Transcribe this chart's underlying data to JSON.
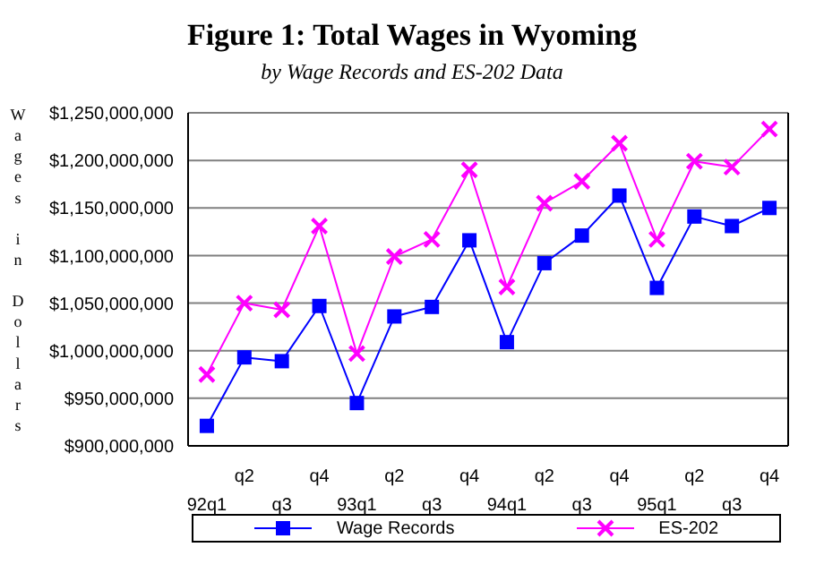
{
  "chart_data": {
    "type": "line",
    "title": "Figure 1:  Total Wages in Wyoming",
    "subtitle": "by Wage Records and ES-202 Data",
    "ylabel": "Wages in Dollars",
    "categories": [
      "92q1",
      "q2",
      "q3",
      "q4",
      "93q1",
      "q2",
      "q3",
      "q4",
      "94q1",
      "q2",
      "q3",
      "q4",
      "95q1",
      "q2",
      "q3",
      "q4"
    ],
    "series": [
      {
        "name": "Wage Records",
        "color": "#0000ff",
        "marker": "square",
        "values": [
          921000000,
          993000000,
          989000000,
          1047000000,
          945000000,
          1036000000,
          1046000000,
          1116000000,
          1009000000,
          1092000000,
          1121000000,
          1163000000,
          1066000000,
          1141000000,
          1131000000,
          1150000000
        ]
      },
      {
        "name": "ES-202",
        "color": "#ff00ff",
        "marker": "cross",
        "values": [
          975000000,
          1050000000,
          1043000000,
          1131000000,
          997000000,
          1099000000,
          1117000000,
          1190000000,
          1067000000,
          1155000000,
          1178000000,
          1218000000,
          1117000000,
          1199000000,
          1193000000,
          1233000000
        ]
      }
    ],
    "ylim": [
      900000000,
      1250000000
    ],
    "yticks": [
      {
        "value": 900000000,
        "label": "$900,000,000"
      },
      {
        "value": 950000000,
        "label": "$950,000,000"
      },
      {
        "value": 1000000000,
        "label": "$1,000,000,000"
      },
      {
        "value": 1050000000,
        "label": "$1,050,000,000"
      },
      {
        "value": 1100000000,
        "label": "$1,100,000,000"
      },
      {
        "value": 1150000000,
        "label": "$1,150,000,000"
      },
      {
        "value": 1200000000,
        "label": "$1,200,000,000"
      },
      {
        "value": 1250000000,
        "label": "$1,250,000,000"
      }
    ],
    "grid": "y",
    "legend": "bottom",
    "line_style": "solid"
  }
}
